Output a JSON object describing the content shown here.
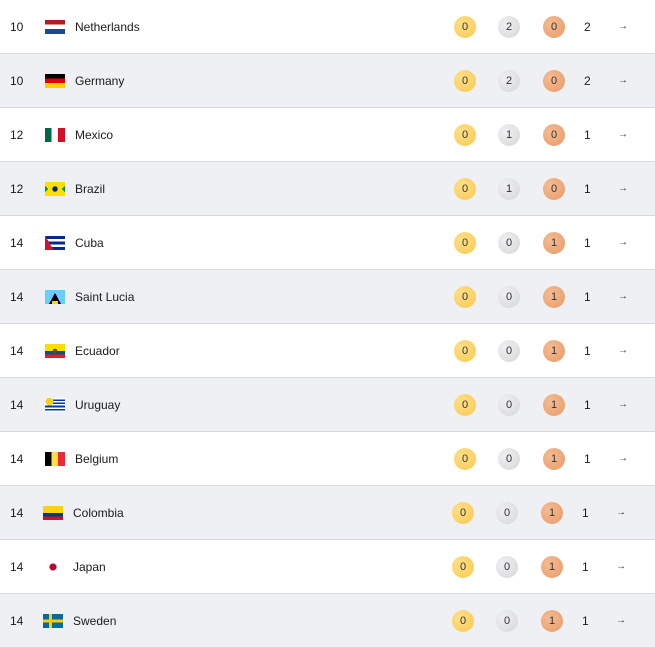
{
  "colors": {
    "gold": "#fbc84e",
    "silver": "#d5d6d9",
    "bronze": "#e89a68",
    "row_alt": "#eef0f3"
  },
  "icons": {
    "row_action": "arrow-right-icon"
  },
  "rows": [
    {
      "rank": "10",
      "country": "Netherlands",
      "flag": "nl",
      "gold": "0",
      "silver": "2",
      "bronze": "0",
      "total": "2",
      "arrow": "→"
    },
    {
      "rank": "10",
      "country": "Germany",
      "flag": "de",
      "gold": "0",
      "silver": "2",
      "bronze": "0",
      "total": "2",
      "arrow": "→"
    },
    {
      "rank": "12",
      "country": "Mexico",
      "flag": "mx",
      "gold": "0",
      "silver": "1",
      "bronze": "0",
      "total": "1",
      "arrow": "→"
    },
    {
      "rank": "12",
      "country": "Brazil",
      "flag": "br",
      "gold": "0",
      "silver": "1",
      "bronze": "0",
      "total": "1",
      "arrow": "→"
    },
    {
      "rank": "14",
      "country": "Cuba",
      "flag": "cu",
      "gold": "0",
      "silver": "0",
      "bronze": "1",
      "total": "1",
      "arrow": "→"
    },
    {
      "rank": "14",
      "country": "Saint Lucia",
      "flag": "lc",
      "gold": "0",
      "silver": "0",
      "bronze": "1",
      "total": "1",
      "arrow": "→"
    },
    {
      "rank": "14",
      "country": "Ecuador",
      "flag": "ec",
      "gold": "0",
      "silver": "0",
      "bronze": "1",
      "total": "1",
      "arrow": "→"
    },
    {
      "rank": "14",
      "country": "Uruguay",
      "flag": "uy",
      "gold": "0",
      "silver": "0",
      "bronze": "1",
      "total": "1",
      "arrow": "→"
    },
    {
      "rank": "14",
      "country": "Belgium",
      "flag": "be",
      "gold": "0",
      "silver": "0",
      "bronze": "1",
      "total": "1",
      "arrow": "→"
    },
    {
      "rank": "14",
      "country": "Colombia",
      "flag": "co",
      "gold": "0",
      "silver": "0",
      "bronze": "1",
      "total": "1",
      "arrow": "→"
    },
    {
      "rank": "14",
      "country": "Japan",
      "flag": "jp",
      "gold": "0",
      "silver": "0",
      "bronze": "1",
      "total": "1",
      "arrow": "→"
    },
    {
      "rank": "14",
      "country": "Sweden",
      "flag": "se",
      "gold": "0",
      "silver": "0",
      "bronze": "1",
      "total": "1",
      "arrow": "→"
    }
  ]
}
